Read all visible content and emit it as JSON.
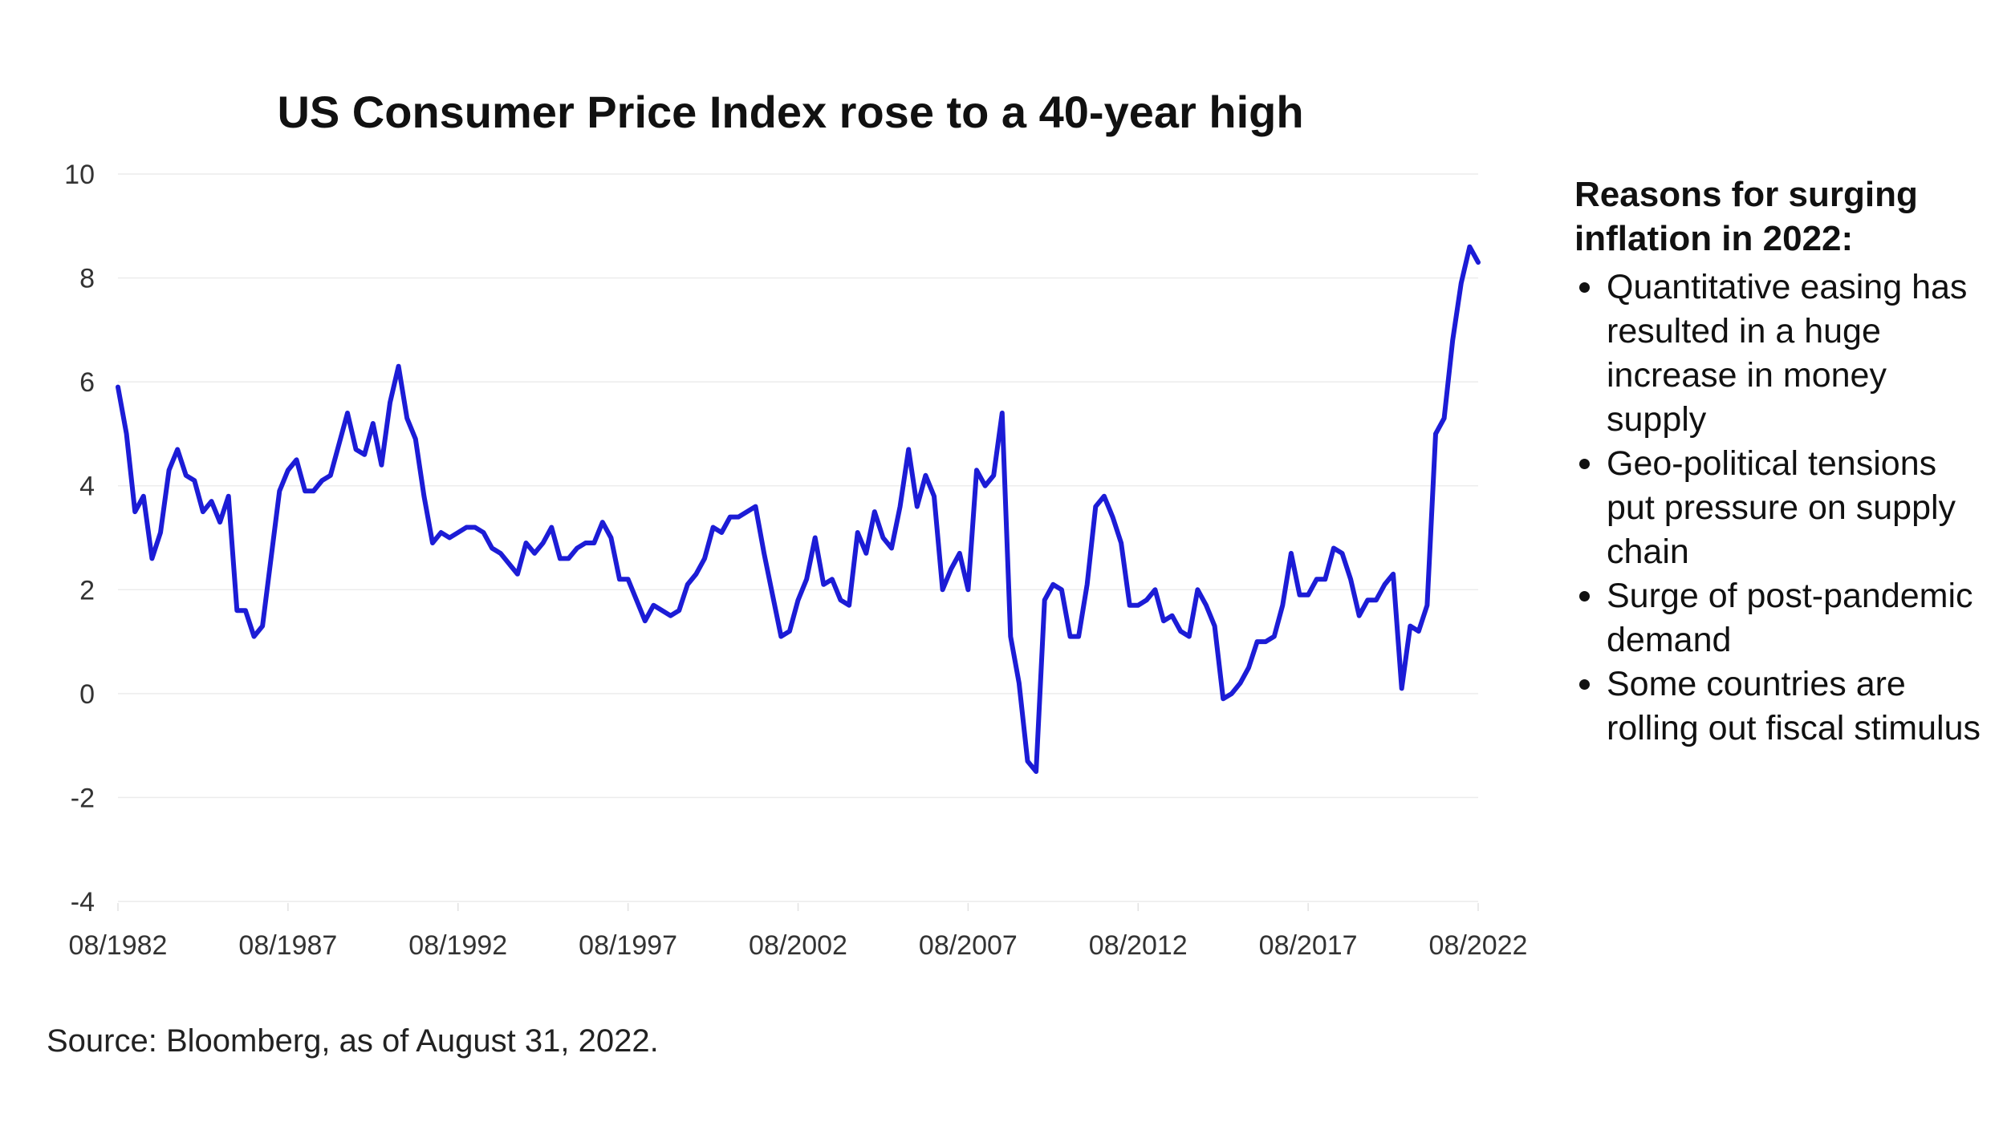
{
  "chart_data": {
    "type": "line",
    "title": "US Consumer Price Index rose to a 40-year high",
    "xlabel": "",
    "ylabel": "",
    "ylim": [
      -4,
      10
    ],
    "yticks": [
      10,
      8,
      6,
      4,
      2,
      0,
      -2,
      -4
    ],
    "x_tick_labels": [
      "08/1982",
      "08/1987",
      "08/1992",
      "08/1997",
      "08/2002",
      "08/2007",
      "08/2012",
      "08/2017",
      "08/2022"
    ],
    "grid": "horizontal",
    "line_color": "#1c1cd6",
    "series": [
      {
        "x": [
          "1982-08",
          "1982-11",
          "1983-02",
          "1983-05",
          "1983-08",
          "1983-11",
          "1984-02",
          "1984-05",
          "1984-08",
          "1984-11",
          "1985-02",
          "1985-05",
          "1985-08",
          "1985-11",
          "1986-02",
          "1986-05",
          "1986-08",
          "1986-11",
          "1987-02",
          "1987-05",
          "1987-08",
          "1987-11",
          "1988-02",
          "1988-05",
          "1988-08",
          "1988-11",
          "1989-02",
          "1989-05",
          "1989-08",
          "1989-11",
          "1990-02",
          "1990-05",
          "1990-08",
          "1990-11",
          "1991-02",
          "1991-05",
          "1991-08",
          "1991-11",
          "1992-02",
          "1992-05",
          "1992-08",
          "1992-11",
          "1993-02",
          "1993-05",
          "1993-08",
          "1993-11",
          "1994-02",
          "1994-05",
          "1994-08",
          "1994-11",
          "1995-02",
          "1995-05",
          "1995-08",
          "1995-11",
          "1996-02",
          "1996-05",
          "1996-08",
          "1996-11",
          "1997-02",
          "1997-05",
          "1997-08",
          "1997-11",
          "1998-02",
          "1998-05",
          "1998-08",
          "1998-11",
          "1999-02",
          "1999-05",
          "1999-08",
          "1999-11",
          "2000-02",
          "2000-05",
          "2000-08",
          "2000-11",
          "2001-02",
          "2001-05",
          "2001-08",
          "2001-11",
          "2002-02",
          "2002-05",
          "2002-08",
          "2002-11",
          "2003-02",
          "2003-05",
          "2003-08",
          "2003-11",
          "2004-02",
          "2004-05",
          "2004-08",
          "2004-11",
          "2005-02",
          "2005-05",
          "2005-08",
          "2005-11",
          "2006-02",
          "2006-05",
          "2006-08",
          "2006-11",
          "2007-02",
          "2007-05",
          "2007-08",
          "2007-11",
          "2008-02",
          "2008-05",
          "2008-08",
          "2008-11",
          "2009-02",
          "2009-05",
          "2009-08",
          "2009-11",
          "2010-02",
          "2010-05",
          "2010-08",
          "2010-11",
          "2011-02",
          "2011-05",
          "2011-08",
          "2011-11",
          "2012-02",
          "2012-05",
          "2012-08",
          "2012-11",
          "2013-02",
          "2013-05",
          "2013-08",
          "2013-11",
          "2014-02",
          "2014-05",
          "2014-08",
          "2014-11",
          "2015-02",
          "2015-05",
          "2015-08",
          "2015-11",
          "2016-02",
          "2016-05",
          "2016-08",
          "2016-11",
          "2017-02",
          "2017-05",
          "2017-08",
          "2017-11",
          "2018-02",
          "2018-05",
          "2018-08",
          "2018-11",
          "2019-02",
          "2019-05",
          "2019-08",
          "2019-11",
          "2020-02",
          "2020-05",
          "2020-08",
          "2020-11",
          "2021-02",
          "2021-05",
          "2021-08",
          "2021-11",
          "2022-02",
          "2022-05",
          "2022-08"
        ],
        "values": [
          5.9,
          5.0,
          3.5,
          3.8,
          2.6,
          3.1,
          4.3,
          4.7,
          4.2,
          4.1,
          3.5,
          3.7,
          3.3,
          3.8,
          1.6,
          1.6,
          1.1,
          1.3,
          2.6,
          3.9,
          4.3,
          4.5,
          3.9,
          3.9,
          4.1,
          4.2,
          4.8,
          5.4,
          4.7,
          4.6,
          5.2,
          4.4,
          5.6,
          6.3,
          5.3,
          4.9,
          3.8,
          2.9,
          3.1,
          3.0,
          3.1,
          3.2,
          3.2,
          3.1,
          2.8,
          2.7,
          2.5,
          2.3,
          2.9,
          2.7,
          2.9,
          3.2,
          2.6,
          2.6,
          2.8,
          2.9,
          2.9,
          3.3,
          3.0,
          2.2,
          2.2,
          1.8,
          1.4,
          1.7,
          1.6,
          1.5,
          1.6,
          2.1,
          2.3,
          2.6,
          3.2,
          3.1,
          3.4,
          3.4,
          3.5,
          3.6,
          2.7,
          1.9,
          1.1,
          1.2,
          1.8,
          2.2,
          3.0,
          2.1,
          2.2,
          1.8,
          1.7,
          3.1,
          2.7,
          3.5,
          3.0,
          2.8,
          3.6,
          4.7,
          3.6,
          4.2,
          3.8,
          2.0,
          2.4,
          2.7,
          2.0,
          4.3,
          4.0,
          4.2,
          5.4,
          1.1,
          0.2,
          -1.3,
          -1.5,
          1.8,
          2.1,
          2.0,
          1.1,
          1.1,
          2.1,
          3.6,
          3.8,
          3.4,
          2.9,
          1.7,
          1.7,
          1.8,
          2.0,
          1.4,
          1.5,
          1.2,
          1.1,
          2.0,
          1.7,
          1.3,
          -0.1,
          0.0,
          0.2,
          0.5,
          1.0,
          1.0,
          1.1,
          1.7,
          2.7,
          1.9,
          1.9,
          2.2,
          2.2,
          2.8,
          2.7,
          2.2,
          1.5,
          1.8,
          1.8,
          2.1,
          2.3,
          0.1,
          1.3,
          1.2,
          1.7,
          5.0,
          5.3,
          6.8,
          7.9,
          8.6,
          8.3
        ]
      }
    ]
  },
  "sidebar": {
    "heading": "Reasons for surging inflation in 2022:",
    "items": [
      "Quantitative easing has resulted in a huge increase in money supply",
      "Geo-political tensions put pressure on supply chain",
      "Surge of post-pandemic demand",
      "Some countries are rolling out fiscal stimulus"
    ]
  },
  "source": "Source: Bloomberg, as of August 31, 2022."
}
